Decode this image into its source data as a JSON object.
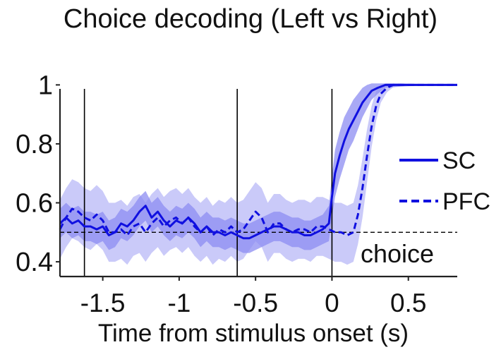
{
  "chart_data": {
    "type": "line",
    "title": "Choice decoding (Left vs Right)",
    "xlabel": "Time from stimulus onset (s)",
    "ylabel": "",
    "xlim": [
      -1.78,
      0.82
    ],
    "ylim": [
      0.35,
      1.02
    ],
    "xticks": [
      -1.5,
      -1,
      -0.5,
      0,
      0.5
    ],
    "xtick_labels": [
      "-1.5",
      "-1",
      "-0.5",
      "0",
      "0.5"
    ],
    "yticks": [
      0.4,
      0.6,
      0.8,
      1
    ],
    "ytick_labels": [
      "0.4",
      "0.6",
      "0.8",
      "1"
    ],
    "vlines": [
      -1.62,
      -0.62,
      0
    ],
    "chance_level": 0.5,
    "annotation": "choice",
    "legend_position": "right",
    "series": [
      {
        "name": "SC",
        "linestyle": "solid",
        "color": "#1010e0",
        "band_color": "#8c8cf2",
        "x": [
          -1.78,
          -1.74,
          -1.7,
          -1.66,
          -1.62,
          -1.58,
          -1.54,
          -1.5,
          -1.46,
          -1.42,
          -1.38,
          -1.34,
          -1.3,
          -1.26,
          -1.22,
          -1.18,
          -1.14,
          -1.1,
          -1.06,
          -1.02,
          -0.98,
          -0.94,
          -0.9,
          -0.86,
          -0.82,
          -0.78,
          -0.74,
          -0.7,
          -0.66,
          -0.62,
          -0.58,
          -0.54,
          -0.5,
          -0.46,
          -0.42,
          -0.38,
          -0.34,
          -0.3,
          -0.26,
          -0.22,
          -0.18,
          -0.14,
          -0.1,
          -0.06,
          -0.02,
          0.0,
          0.02,
          0.05,
          0.08,
          0.11,
          0.14,
          0.17,
          0.2,
          0.23,
          0.26,
          0.3,
          0.35,
          0.45,
          0.6,
          0.82
        ],
        "y": [
          0.53,
          0.55,
          0.53,
          0.54,
          0.52,
          0.52,
          0.51,
          0.52,
          0.49,
          0.5,
          0.53,
          0.52,
          0.54,
          0.57,
          0.59,
          0.55,
          0.57,
          0.54,
          0.52,
          0.54,
          0.53,
          0.55,
          0.53,
          0.5,
          0.52,
          0.5,
          0.5,
          0.49,
          0.5,
          0.49,
          0.48,
          0.48,
          0.49,
          0.5,
          0.51,
          0.52,
          0.52,
          0.51,
          0.5,
          0.5,
          0.49,
          0.49,
          0.5,
          0.51,
          0.53,
          0.62,
          0.7,
          0.76,
          0.81,
          0.85,
          0.88,
          0.91,
          0.94,
          0.96,
          0.98,
          0.99,
          1.0,
          1.0,
          1.0,
          1.0
        ],
        "err": [
          0.05,
          0.05,
          0.05,
          0.05,
          0.05,
          0.05,
          0.05,
          0.05,
          0.05,
          0.05,
          0.05,
          0.05,
          0.05,
          0.05,
          0.05,
          0.05,
          0.05,
          0.05,
          0.05,
          0.05,
          0.05,
          0.05,
          0.05,
          0.05,
          0.05,
          0.05,
          0.05,
          0.05,
          0.05,
          0.05,
          0.05,
          0.05,
          0.05,
          0.05,
          0.05,
          0.05,
          0.05,
          0.05,
          0.05,
          0.05,
          0.05,
          0.05,
          0.05,
          0.05,
          0.06,
          0.07,
          0.08,
          0.08,
          0.08,
          0.07,
          0.07,
          0.06,
          0.05,
          0.04,
          0.03,
          0.02,
          0.01,
          0.005,
          0.003,
          0.003
        ]
      },
      {
        "name": "PFC",
        "linestyle": "dashed",
        "color": "#1010e0",
        "band_color": "#c4c4f8",
        "x": [
          -1.78,
          -1.74,
          -1.7,
          -1.66,
          -1.62,
          -1.58,
          -1.54,
          -1.5,
          -1.46,
          -1.42,
          -1.38,
          -1.34,
          -1.3,
          -1.26,
          -1.22,
          -1.18,
          -1.14,
          -1.1,
          -1.06,
          -1.02,
          -0.98,
          -0.94,
          -0.9,
          -0.86,
          -0.82,
          -0.78,
          -0.74,
          -0.7,
          -0.66,
          -0.62,
          -0.58,
          -0.54,
          -0.5,
          -0.46,
          -0.42,
          -0.38,
          -0.34,
          -0.3,
          -0.26,
          -0.22,
          -0.18,
          -0.14,
          -0.1,
          -0.06,
          -0.02,
          0.02,
          0.06,
          0.1,
          0.14,
          0.17,
          0.2,
          0.23,
          0.26,
          0.29,
          0.32,
          0.36,
          0.4,
          0.5,
          0.82
        ],
        "y": [
          0.51,
          0.55,
          0.58,
          0.57,
          0.55,
          0.54,
          0.56,
          0.54,
          0.5,
          0.5,
          0.51,
          0.49,
          0.52,
          0.53,
          0.5,
          0.53,
          0.55,
          0.52,
          0.54,
          0.55,
          0.53,
          0.55,
          0.52,
          0.5,
          0.52,
          0.49,
          0.51,
          0.5,
          0.52,
          0.5,
          0.51,
          0.54,
          0.57,
          0.55,
          0.5,
          0.53,
          0.53,
          0.51,
          0.5,
          0.51,
          0.51,
          0.5,
          0.52,
          0.52,
          0.51,
          0.5,
          0.5,
          0.49,
          0.5,
          0.56,
          0.65,
          0.76,
          0.86,
          0.93,
          0.97,
          0.99,
          1.0,
          1.0,
          1.0
        ],
        "err": [
          0.1,
          0.1,
          0.1,
          0.1,
          0.1,
          0.1,
          0.1,
          0.1,
          0.1,
          0.1,
          0.1,
          0.1,
          0.1,
          0.1,
          0.1,
          0.1,
          0.1,
          0.1,
          0.1,
          0.1,
          0.1,
          0.1,
          0.1,
          0.1,
          0.1,
          0.1,
          0.1,
          0.1,
          0.1,
          0.1,
          0.1,
          0.1,
          0.1,
          0.1,
          0.1,
          0.1,
          0.1,
          0.1,
          0.1,
          0.1,
          0.1,
          0.1,
          0.1,
          0.1,
          0.1,
          0.1,
          0.1,
          0.1,
          0.1,
          0.1,
          0.1,
          0.09,
          0.07,
          0.05,
          0.03,
          0.015,
          0.008,
          0.004,
          0.004
        ]
      }
    ]
  }
}
